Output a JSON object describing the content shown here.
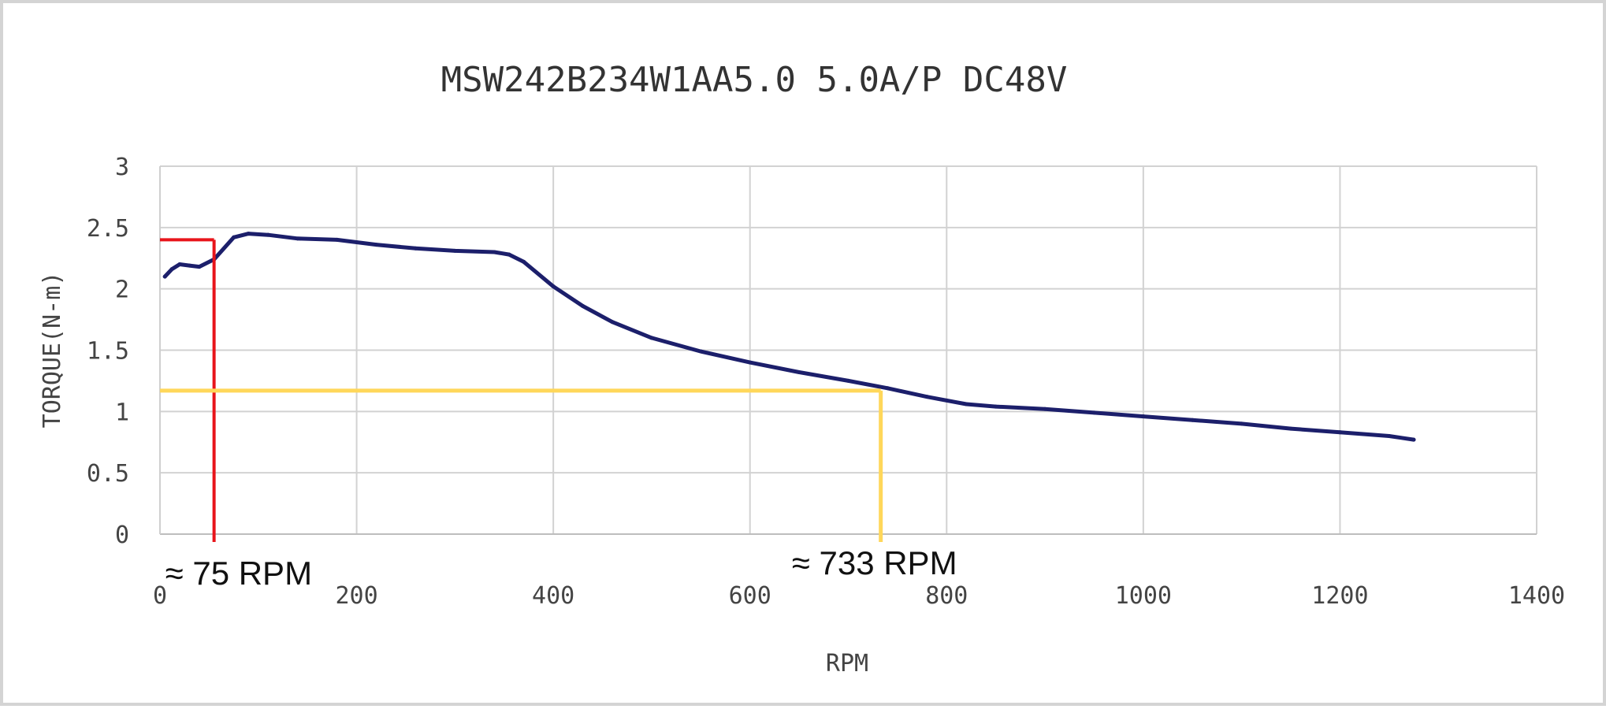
{
  "chart_data": {
    "type": "line",
    "title": "MSW242B234W1AA5.0 5.0A/P DC48V",
    "xlabel": "RPM",
    "ylabel": "TORQUE(N-m)",
    "xlim": [
      0,
      1400
    ],
    "ylim": [
      0,
      3
    ],
    "x_ticks": [
      0,
      200,
      400,
      600,
      800,
      1000,
      1200,
      1400
    ],
    "y_ticks": [
      0,
      0.5,
      1,
      1.5,
      2,
      2.5,
      3
    ],
    "x_tick_labels": [
      "0",
      "200",
      "400",
      "600",
      "800",
      "1000",
      "1200",
      "1400"
    ],
    "y_tick_labels": [
      "0",
      "0.5",
      "1",
      "1.5",
      "2",
      "2.5",
      "3"
    ],
    "grid": true,
    "series": [
      {
        "color": "#1c1f6b",
        "x": [
          5,
          12,
          20,
          30,
          40,
          55,
          75,
          90,
          110,
          140,
          180,
          220,
          260,
          300,
          340,
          355,
          370,
          400,
          430,
          460,
          500,
          550,
          600,
          650,
          700,
          740,
          780,
          820,
          850,
          900,
          950,
          1000,
          1050,
          1100,
          1150,
          1200,
          1250,
          1275
        ],
        "y": [
          2.1,
          2.16,
          2.2,
          2.19,
          2.18,
          2.24,
          2.42,
          2.45,
          2.44,
          2.41,
          2.4,
          2.36,
          2.33,
          2.31,
          2.3,
          2.28,
          2.22,
          2.02,
          1.86,
          1.73,
          1.6,
          1.49,
          1.4,
          1.32,
          1.25,
          1.19,
          1.12,
          1.06,
          1.04,
          1.02,
          0.99,
          0.96,
          0.93,
          0.9,
          0.86,
          0.83,
          0.8,
          0.77
        ]
      }
    ],
    "annotations": [
      {
        "label": "≈ 75 RPM",
        "rpm": 55,
        "torque": 2.4,
        "color": "#e8141a"
      },
      {
        "label": "≈ 733 RPM",
        "rpm": 733,
        "torque": 1.17,
        "color": "#ffd75a"
      }
    ]
  }
}
